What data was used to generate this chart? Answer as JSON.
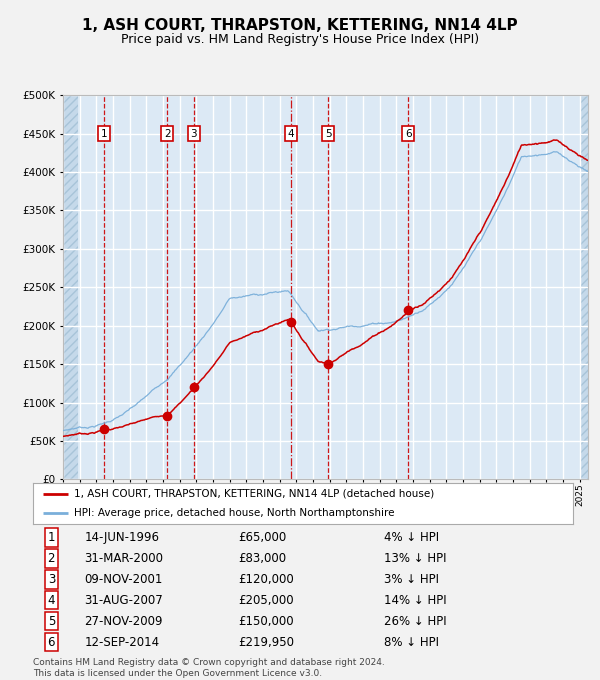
{
  "title": "1, ASH COURT, THRAPSTON, KETTERING, NN14 4LP",
  "subtitle": "Price paid vs. HM Land Registry's House Price Index (HPI)",
  "title_fontsize": 11,
  "subtitle_fontsize": 9,
  "background_color": "#dce9f5",
  "grid_color": "#ffffff",
  "ylim": [
    0,
    500000
  ],
  "yticks": [
    0,
    50000,
    100000,
    150000,
    200000,
    250000,
    300000,
    350000,
    400000,
    450000,
    500000
  ],
  "sale_dates_x": [
    1996.45,
    2000.25,
    2001.85,
    2007.67,
    2009.9,
    2014.71
  ],
  "sale_prices_y": [
    65000,
    83000,
    120000,
    205000,
    150000,
    219950
  ],
  "sale_labels": [
    "1",
    "2",
    "3",
    "4",
    "5",
    "6"
  ],
  "red_line_color": "#cc0000",
  "blue_line_color": "#7aafda",
  "marker_color": "#cc0000",
  "legend_label_red": "1, ASH COURT, THRAPSTON, KETTERING, NN14 4LP (detached house)",
  "legend_label_blue": "HPI: Average price, detached house, North Northamptonshire",
  "table_data": [
    [
      "1",
      "14-JUN-1996",
      "£65,000",
      "4% ↓ HPI"
    ],
    [
      "2",
      "31-MAR-2000",
      "£83,000",
      "13% ↓ HPI"
    ],
    [
      "3",
      "09-NOV-2001",
      "£120,000",
      "3% ↓ HPI"
    ],
    [
      "4",
      "31-AUG-2007",
      "£205,000",
      "14% ↓ HPI"
    ],
    [
      "5",
      "27-NOV-2009",
      "£150,000",
      "26% ↓ HPI"
    ],
    [
      "6",
      "12-SEP-2014",
      "£219,950",
      "8% ↓ HPI"
    ]
  ],
  "footer_text": "Contains HM Land Registry data © Crown copyright and database right 2024.\nThis data is licensed under the Open Government Licence v3.0.",
  "xmin": 1994.0,
  "xmax": 2025.5
}
